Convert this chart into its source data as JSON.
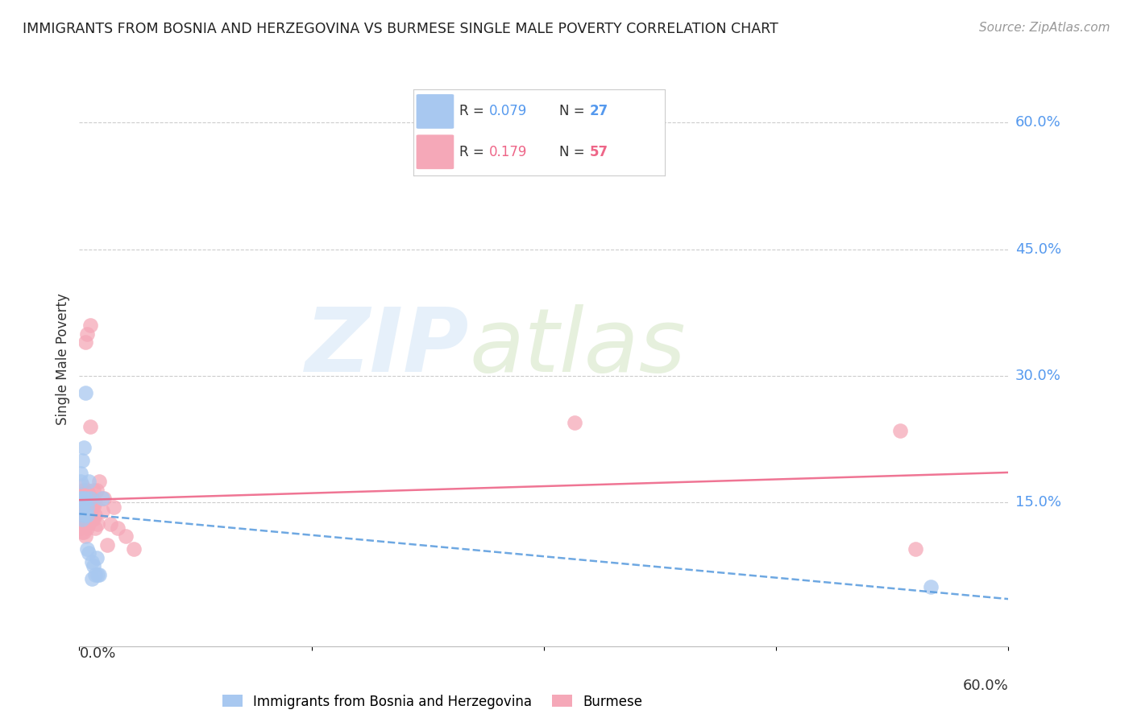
{
  "title": "IMMIGRANTS FROM BOSNIA AND HERZEGOVINA VS BURMESE SINGLE MALE POVERTY CORRELATION CHART",
  "source": "Source: ZipAtlas.com",
  "ylabel": "Single Male Poverty",
  "ytick_labels": [
    "15.0%",
    "30.0%",
    "45.0%",
    "60.0%"
  ],
  "ytick_values": [
    0.15,
    0.3,
    0.45,
    0.6
  ],
  "xlim": [
    0.0,
    0.6
  ],
  "ylim": [
    -0.02,
    0.66
  ],
  "color_bosnia": "#a8c8f0",
  "color_burmese": "#f5a8b8",
  "trendline_bosnia_color": "#5599dd",
  "trendline_burmese_color": "#ee6688",
  "bosnia_x": [
    0.001,
    0.001,
    0.001,
    0.002,
    0.002,
    0.002,
    0.002,
    0.003,
    0.003,
    0.003,
    0.004,
    0.004,
    0.005,
    0.005,
    0.005,
    0.006,
    0.006,
    0.007,
    0.008,
    0.008,
    0.009,
    0.01,
    0.011,
    0.012,
    0.013,
    0.015,
    0.55
  ],
  "bosnia_y": [
    0.155,
    0.175,
    0.185,
    0.13,
    0.145,
    0.155,
    0.2,
    0.135,
    0.15,
    0.215,
    0.155,
    0.28,
    0.135,
    0.145,
    0.095,
    0.09,
    0.175,
    0.155,
    0.06,
    0.08,
    0.075,
    0.065,
    0.085,
    0.065,
    0.065,
    0.155,
    0.05
  ],
  "burmese_x": [
    0.001,
    0.001,
    0.001,
    0.001,
    0.002,
    0.002,
    0.002,
    0.002,
    0.002,
    0.002,
    0.003,
    0.003,
    0.003,
    0.003,
    0.003,
    0.004,
    0.004,
    0.004,
    0.004,
    0.004,
    0.005,
    0.005,
    0.005,
    0.005,
    0.005,
    0.005,
    0.006,
    0.006,
    0.006,
    0.006,
    0.007,
    0.007,
    0.007,
    0.007,
    0.008,
    0.008,
    0.008,
    0.009,
    0.009,
    0.009,
    0.01,
    0.01,
    0.01,
    0.011,
    0.012,
    0.013,
    0.015,
    0.016,
    0.018,
    0.02,
    0.022,
    0.025,
    0.03,
    0.035,
    0.32,
    0.53,
    0.54
  ],
  "burmese_y": [
    0.12,
    0.135,
    0.145,
    0.155,
    0.115,
    0.13,
    0.14,
    0.15,
    0.16,
    0.17,
    0.115,
    0.13,
    0.145,
    0.155,
    0.165,
    0.11,
    0.125,
    0.14,
    0.155,
    0.34,
    0.12,
    0.135,
    0.145,
    0.155,
    0.165,
    0.35,
    0.125,
    0.14,
    0.15,
    0.16,
    0.13,
    0.145,
    0.24,
    0.36,
    0.13,
    0.145,
    0.155,
    0.13,
    0.145,
    0.165,
    0.12,
    0.135,
    0.15,
    0.165,
    0.125,
    0.175,
    0.14,
    0.155,
    0.1,
    0.125,
    0.145,
    0.12,
    0.11,
    0.095,
    0.245,
    0.235,
    0.095
  ],
  "legend_r1_val": "0.079",
  "legend_r2_val": "0.179",
  "legend_n1": "27",
  "legend_n2": "57",
  "bottom_legend1": "Immigrants from Bosnia and Herzegovina",
  "bottom_legend2": "Burmese"
}
